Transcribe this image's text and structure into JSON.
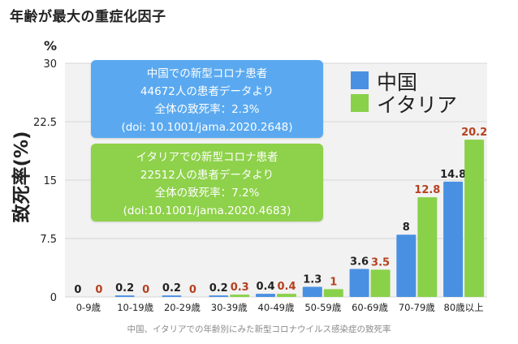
{
  "header": {
    "title": "年齢が最大の重症化因子"
  },
  "chart_data": {
    "type": "bar",
    "title": "",
    "xlabel": "",
    "ylabel": "致死率(%)",
    "y_unit": "%",
    "ylim": [
      0,
      30
    ],
    "yticks": [
      "0",
      "7.5",
      "15",
      "22.5",
      "30"
    ],
    "categories": [
      "0-9歳",
      "10-19歳",
      "20-29歳",
      "30-39歳",
      "40-49歳",
      "50-59歳",
      "60-69歳",
      "70-79歳",
      "80歳以上"
    ],
    "series": [
      {
        "name": "中国",
        "color": "#4a90e2",
        "label_color": "#222222",
        "values": [
          0,
          0.2,
          0.2,
          0.2,
          0.4,
          1.3,
          3.6,
          8,
          14.8
        ],
        "labels": [
          "0",
          "0.2",
          "0.2",
          "0.2",
          "0.4",
          "1.3",
          "3.6",
          "8",
          "14.8"
        ]
      },
      {
        "name": "イタリア",
        "color": "#8ad14a",
        "label_color": "#b5401f",
        "values": [
          0,
          0,
          0,
          0.3,
          0.4,
          1,
          3.5,
          12.8,
          20.2
        ],
        "labels": [
          "0",
          "0",
          "0",
          "0.3",
          "0.4",
          "1",
          "3.5",
          "12.8",
          "20.2"
        ]
      }
    ],
    "legend_position": "top-right",
    "grid": true
  },
  "info_boxes": {
    "china": {
      "line1": "中国での新型コロナ患者",
      "line2": "44672人の患者データより",
      "line3": "全体の致死率：2.3%",
      "line4": "(doi: 10.1001/jama.2020.2648)"
    },
    "italy": {
      "line1": "イタリアでの新型コロナ患者",
      "line2": "22512人の患者データより",
      "line3": "全体の致死率：7.2%",
      "line4": "(doi:10.1001/jama.2020.4683)"
    }
  },
  "caption": "中国、イタリアでの年齢別にみた新型コロナウイルス感染症の致死率"
}
